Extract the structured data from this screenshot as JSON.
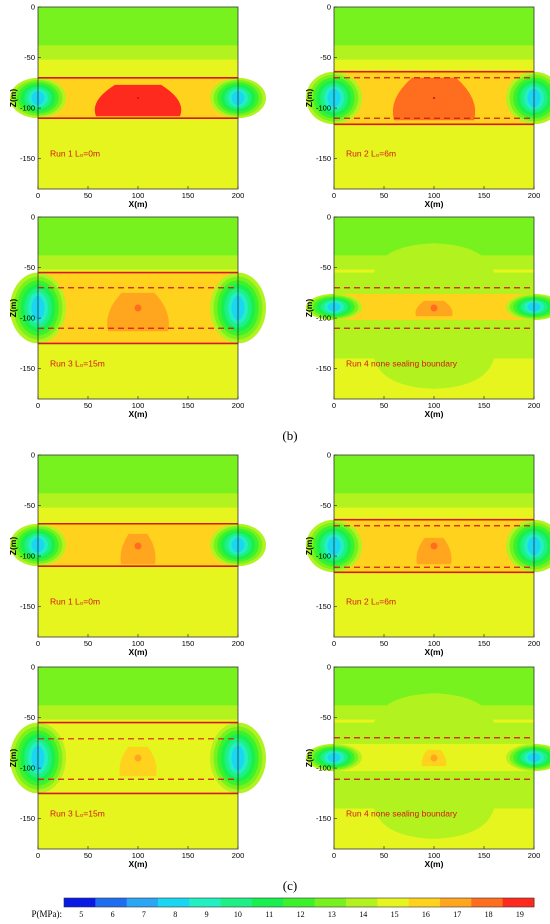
{
  "sections": [
    {
      "label": "(b)",
      "panels": [
        {
          "run_label": "Run 1  L₀=0m",
          "seal_top": -70,
          "seal_bottom": -110,
          "well_top": -70,
          "well_bottom": -110,
          "peak_level": 19,
          "bubble_half_width": 42,
          "bubble_top": -77,
          "bubble_bottom": -108
        },
        {
          "run_label": "Run 2  L₀=6m",
          "seal_top": -64,
          "seal_bottom": -116,
          "well_top": -70,
          "well_bottom": -110,
          "peak_level": 18,
          "bubble_half_width": 40,
          "bubble_top": -70,
          "bubble_bottom": -112
        },
        {
          "run_label": "Run 3  L₀=15m",
          "seal_top": -55,
          "seal_bottom": -125,
          "well_top": -70,
          "well_bottom": -110,
          "peak_level": 17,
          "bubble_half_width": 30,
          "bubble_top": -75,
          "bubble_bottom": -113
        },
        {
          "run_label": "Run 4  none sealing boundary",
          "seal_top": null,
          "seal_bottom": null,
          "well_top": -70,
          "well_bottom": -110,
          "peak_level": 17,
          "bubble_half_width": 18,
          "bubble_top": -83,
          "bubble_bottom": -98
        }
      ]
    },
    {
      "label": "(c)",
      "panels": [
        {
          "run_label": "Run 1  L₀=0m",
          "seal_top": -68,
          "seal_bottom": -110,
          "well_top": -68,
          "well_bottom": -110,
          "peak_level": 17,
          "bubble_half_width": 17,
          "bubble_top": -78,
          "bubble_bottom": -108
        },
        {
          "run_label": "Run 2  L₀=6m",
          "seal_top": -64,
          "seal_bottom": -116,
          "well_top": -70,
          "well_bottom": -111,
          "peak_level": 17,
          "bubble_half_width": 17,
          "bubble_top": -82,
          "bubble_bottom": -108
        },
        {
          "run_label": "Run 3  L₀=15m",
          "seal_top": -55,
          "seal_bottom": -125,
          "well_top": -71,
          "well_bottom": -111,
          "peak_level": 16,
          "bubble_half_width": 18,
          "bubble_top": -79,
          "bubble_bottom": -108
        },
        {
          "run_label": "Run 4  none sealing boundary",
          "seal_top": null,
          "seal_bottom": null,
          "well_top": -70,
          "well_bottom": -111,
          "peak_level": 16,
          "bubble_half_width": 12,
          "bubble_top": -82,
          "bubble_bottom": -98
        }
      ]
    }
  ],
  "chart_data": {
    "type": "heatmap",
    "xlabel": "X(m)",
    "ylabel": "Z(m)",
    "xlim": [
      0,
      200
    ],
    "ylim": [
      -180,
      0
    ],
    "x_ticks": [
      0,
      50,
      100,
      150,
      200
    ],
    "y_ticks": [
      0,
      -50,
      -100,
      -150
    ],
    "colorbar": {
      "label": "P(MPa):",
      "ticks": [
        5,
        6,
        7,
        8,
        9,
        10,
        11,
        12,
        13,
        14,
        15,
        16,
        17,
        18,
        19
      ],
      "colors": [
        "#0a1ae6",
        "#1f6ef2",
        "#2aa6f5",
        "#19d7f2",
        "#22f0c2",
        "#1ff085",
        "#18f04f",
        "#3cf22a",
        "#78f21e",
        "#b2f21e",
        "#e6f51e",
        "#ffd21e",
        "#ffa61e",
        "#ff6e1e",
        "#ff2a1e"
      ]
    }
  }
}
